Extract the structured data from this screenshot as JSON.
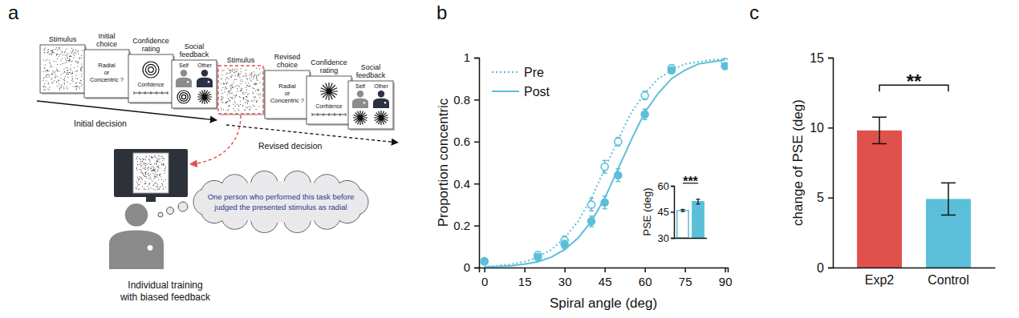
{
  "panel_labels": [
    "a",
    "b",
    "c"
  ],
  "diagram": {
    "cards": [
      {
        "label": [
          "Stimulus"
        ]
      },
      {
        "label": [
          "Initial",
          "choice"
        ],
        "text": [
          "Radial",
          "or",
          "Concentric ?"
        ]
      },
      {
        "label": [
          "Confidence",
          "rating"
        ],
        "scale": "Confidence"
      },
      {
        "label": [
          "Social",
          "feedback"
        ],
        "self": "Self",
        "other": "Other"
      },
      {
        "label": [
          "Stimulus"
        ]
      },
      {
        "label": [
          "Revised",
          "choice"
        ],
        "text": [
          "Radial",
          "or",
          "Concentric ?"
        ]
      },
      {
        "label": [
          "Confidence",
          "rating"
        ],
        "scale": "Confidence"
      },
      {
        "label": [
          "Social",
          "feedback"
        ],
        "self": "Self",
        "other": "Other"
      }
    ],
    "arrows": [
      "Initial decision",
      "Revised decision"
    ],
    "thought": [
      "One person who performed this task before",
      "judged the presented stimulus as radial"
    ],
    "caption": [
      "Individual training",
      "with biased feedback"
    ]
  },
  "chart_data": [
    {
      "type": "line",
      "x_label": "Spiral angle (deg)",
      "y_label": "Proportion concentric",
      "x": [
        0,
        20,
        30,
        40,
        45,
        50,
        60,
        70,
        90
      ],
      "fit_x": [
        0,
        5,
        10,
        15,
        20,
        25,
        30,
        35,
        40,
        45,
        50,
        55,
        60,
        65,
        70,
        75,
        80,
        85,
        90
      ],
      "series": [
        {
          "name": "Pre",
          "color": "#5bbfd9",
          "marker": "open-circle",
          "line_style": "dotted",
          "values": [
            0.03,
            0.06,
            0.13,
            0.3,
            0.48,
            0.6,
            0.82,
            0.95,
            0.98
          ],
          "errors": [
            0.01,
            0.015,
            0.02,
            0.03,
            0.03,
            0.02,
            0.02,
            0.015,
            0.01
          ],
          "fit_values": [
            0.005,
            0.009,
            0.016,
            0.028,
            0.049,
            0.085,
            0.14,
            0.22,
            0.33,
            0.47,
            0.61,
            0.74,
            0.83,
            0.9,
            0.94,
            0.97,
            0.98,
            0.99,
            0.99
          ]
        },
        {
          "name": "Post",
          "color": "#5bbfd9",
          "marker": "circle",
          "line_style": "solid",
          "values": [
            0.03,
            0.05,
            0.11,
            0.22,
            0.31,
            0.44,
            0.73,
            0.94,
            0.96
          ],
          "errors": [
            0.01,
            0.015,
            0.02,
            0.025,
            0.03,
            0.03,
            0.025,
            0.015,
            0.01
          ],
          "fit_values": [
            0.003,
            0.005,
            0.009,
            0.016,
            0.028,
            0.049,
            0.085,
            0.14,
            0.22,
            0.33,
            0.47,
            0.61,
            0.74,
            0.83,
            0.9,
            0.94,
            0.97,
            0.98,
            0.99
          ]
        }
      ],
      "xlim": [
        -2,
        91
      ],
      "xticks": [
        0,
        15,
        30,
        45,
        60,
        75,
        90
      ],
      "ylim": [
        0,
        1
      ],
      "yticks": [
        0,
        0.2,
        0.4,
        0.6,
        0.8,
        1
      ],
      "legend": "upper left"
    },
    {
      "type": "bar",
      "y_label": "PSE (deg)",
      "categories": [
        null,
        null
      ],
      "values": [
        45.8,
        50.9
      ],
      "errors": [
        0.6,
        1.4
      ],
      "colors": [
        "#ffffff",
        "#5bbfd9"
      ],
      "ylim": [
        30,
        60
      ],
      "yticks": [
        30,
        45,
        60
      ],
      "annotations": [
        "***"
      ]
    },
    {
      "type": "bar",
      "y_label": "change of PSE (deg)",
      "categories": [
        "Exp2",
        "Control"
      ],
      "values": [
        9.8,
        4.9
      ],
      "errors": [
        0.95,
        1.15
      ],
      "colors": [
        "#e0514c",
        "#5bbfd9"
      ],
      "ylim": [
        0,
        15
      ],
      "yticks": [
        0,
        5,
        10,
        15
      ],
      "annotations": [
        "**"
      ]
    }
  ]
}
